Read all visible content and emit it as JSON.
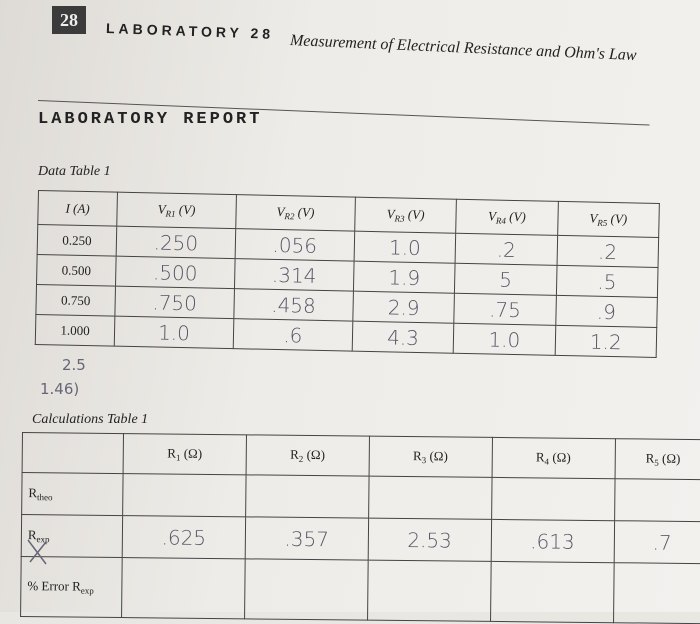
{
  "header": {
    "page_number": "28",
    "lab_label": "LABORATORY 28",
    "subtitle": "Measurement of Electrical Resistance and Ohm's Law"
  },
  "report_title": "LABORATORY REPORT",
  "data_table": {
    "title": "Data Table 1",
    "headers": [
      "I (A)",
      {
        "symbol": "V",
        "sub": "R1",
        "unit": "(V)"
      },
      {
        "symbol": "V",
        "sub": "R2",
        "unit": "(V)"
      },
      {
        "symbol": "V",
        "sub": "R3",
        "unit": "(V)"
      },
      {
        "symbol": "V",
        "sub": "R4",
        "unit": "(V)"
      },
      {
        "symbol": "V",
        "sub": "R5",
        "unit": "(V)"
      }
    ],
    "rows": [
      [
        "0.250",
        ".250",
        ".056",
        "1.0",
        ".2",
        ".2"
      ],
      [
        "0.500",
        ".500",
        ".314",
        "1.9",
        "5",
        ".5"
      ],
      [
        "0.750",
        ".750",
        ".458",
        "2.9",
        ".75",
        ".9"
      ],
      [
        "1.000",
        "1.0",
        ".6",
        "4.3",
        "1.0",
        "1.2"
      ]
    ]
  },
  "notes": [
    "2.5",
    "1.46)"
  ],
  "calc_table": {
    "title": "Calculations Table 1",
    "headers": [
      {
        "symbol": "R",
        "sub": "1",
        "unit": "(Ω)"
      },
      {
        "symbol": "R",
        "sub": "2",
        "unit": "(Ω)"
      },
      {
        "symbol": "R",
        "sub": "3",
        "unit": "(Ω)"
      },
      {
        "symbol": "R",
        "sub": "4",
        "unit": "(Ω)"
      },
      {
        "symbol": "R",
        "sub": "5",
        "unit": "(Ω)"
      }
    ],
    "rows": [
      {
        "label": {
          "symbol": "R",
          "sub": "theo"
        },
        "cells": []
      },
      {
        "label": {
          "symbol": "R",
          "sub": "exp"
        },
        "cells": [
          ".625",
          ".357",
          "2.53",
          ".613",
          ".7"
        ]
      },
      {
        "label": {
          "prefix": "% Error",
          "symbol": "R",
          "sub": "exp"
        },
        "cells": []
      }
    ]
  }
}
